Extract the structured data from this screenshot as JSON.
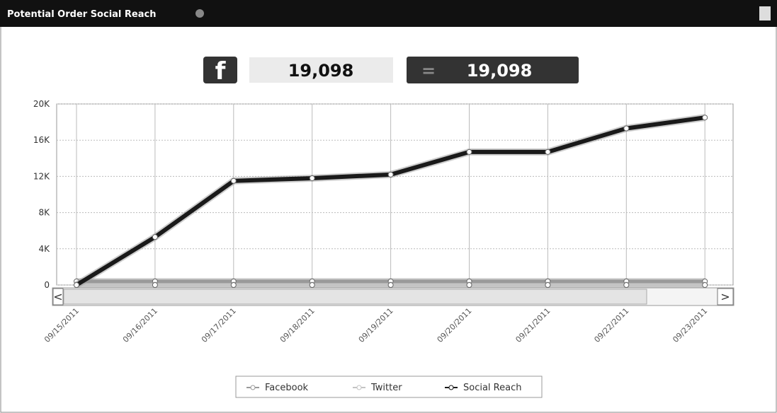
{
  "header": {
    "title": "Potential Order Social Reach"
  },
  "summary": {
    "facebook_total": "19,098",
    "equals": "=",
    "grand_total": "19,098"
  },
  "chart_data": {
    "type": "line",
    "categories": [
      "09/15/2011",
      "09/16/2011",
      "09/17/2011",
      "09/18/2011",
      "09/19/2011",
      "09/20/2011",
      "09/21/2011",
      "09/22/2011",
      "09/23/2011"
    ],
    "series": [
      {
        "name": "Facebook",
        "color": "#9a9a9a",
        "values": [
          400,
          400,
          400,
          400,
          400,
          400,
          400,
          400,
          400
        ]
      },
      {
        "name": "Twitter",
        "color": "#c4c4c4",
        "values": [
          0,
          0,
          0,
          0,
          0,
          0,
          0,
          0,
          0
        ]
      },
      {
        "name": "Social Reach",
        "color": "#1a1a1a",
        "values": [
          0,
          5300,
          11500,
          11800,
          12200,
          14700,
          14700,
          17300,
          18500
        ]
      }
    ],
    "ylim": [
      0,
      20000
    ],
    "yticks": [
      0,
      {
        "value": 4000,
        "label": "4K"
      },
      {
        "value": 8000,
        "label": "8K"
      },
      {
        "value": 12000,
        "label": "12K"
      },
      {
        "value": 16000,
        "label": "16K"
      },
      {
        "value": 20000,
        "label": "20K"
      }
    ],
    "grid": true
  }
}
